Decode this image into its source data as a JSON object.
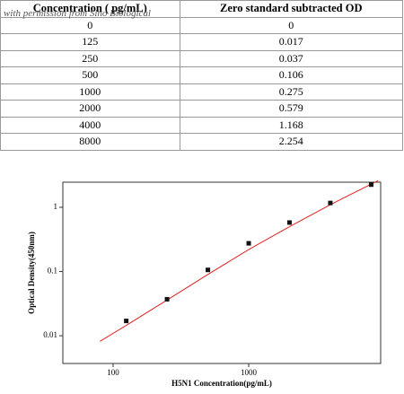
{
  "watermark": "with permission from Sino Biological",
  "table": {
    "header": [
      "Concentration ( pg/mL)",
      "Zero standard subtracted OD"
    ],
    "rows": [
      [
        "0",
        "0"
      ],
      [
        "125",
        "0.017"
      ],
      [
        "250",
        "0.037"
      ],
      [
        "500",
        "0.106"
      ],
      [
        "1000",
        "0.275"
      ],
      [
        "2000",
        "0.579"
      ],
      [
        "4000",
        "1.168"
      ],
      [
        "8000",
        "2.254"
      ]
    ]
  },
  "chart_data": {
    "type": "scatter",
    "x_label": "H5N1 Concentration(pg/mL)",
    "y_label": "Optical Density(450nm)",
    "x_log": true,
    "y_log": true,
    "xlim": [
      42.6,
      9400
    ],
    "ylim": [
      0.0037,
      2.46
    ],
    "xticks": [
      100,
      1000
    ],
    "yticks": [
      0.01,
      0.1,
      1
    ],
    "points": {
      "color": "#111111",
      "x": [
        125,
        250,
        500,
        1000,
        2000,
        4000,
        8000
      ],
      "values": [
        0.017,
        0.037,
        0.106,
        0.275,
        0.579,
        1.168,
        2.254
      ]
    },
    "curve": {
      "color": "#e02020",
      "x": [
        80,
        125,
        250,
        500,
        1000,
        2000,
        4000,
        9000
      ],
      "values": [
        0.0082,
        0.0145,
        0.036,
        0.09,
        0.22,
        0.5,
        1.1,
        2.6
      ]
    }
  }
}
